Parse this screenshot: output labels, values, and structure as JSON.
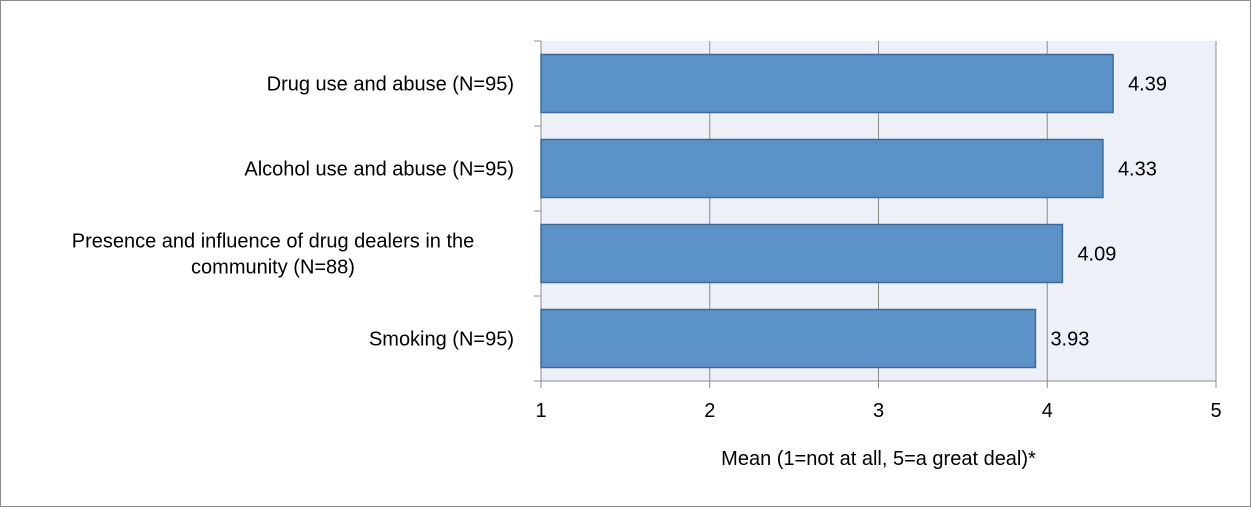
{
  "chart_data": {
    "type": "bar",
    "orientation": "horizontal",
    "categories": [
      [
        "Drug use and abuse (N=95)"
      ],
      [
        "Alcohol use and abuse (N=95)"
      ],
      [
        "Presence and influence of drug dealers in the",
        "community (N=88)"
      ],
      [
        "Smoking (N=95)"
      ]
    ],
    "values": [
      4.39,
      4.33,
      4.09,
      3.93
    ],
    "data_labels": [
      "4.39",
      "4.33",
      "4.09",
      "3.93"
    ],
    "xlabel": "Mean (1=not at all, 5=a great deal)*",
    "ylabel": "",
    "xlim": [
      1,
      5
    ],
    "xticks": [
      "1",
      "2",
      "3",
      "4",
      "5"
    ],
    "grid": true,
    "legend": "none"
  },
  "colors": {
    "bar_fill": "#5b93c9",
    "bar_stroke": "#3d6b99",
    "plot_background": "#eef0f8",
    "gridline": "#8c8c8c",
    "axis": "#8c8c8c"
  }
}
